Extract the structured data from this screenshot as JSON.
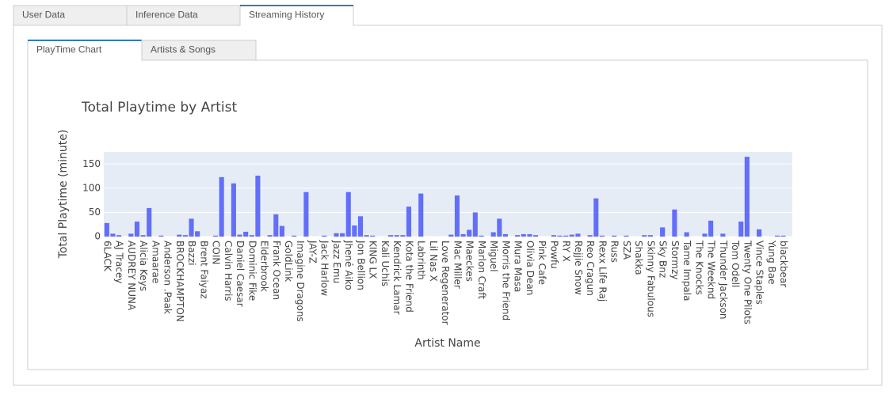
{
  "tabs": [
    {
      "label": "User Data"
    },
    {
      "label": "Inference Data"
    },
    {
      "label": "Streaming History"
    }
  ],
  "active_tab": 2,
  "subtabs": [
    {
      "label": "PlayTime Chart"
    },
    {
      "label": "Artists & Songs"
    }
  ],
  "active_subtab": 0,
  "chart_data": {
    "type": "bar",
    "title": "Total Playtime by Artist",
    "x_label": "Artist Name",
    "y_label": "Total Playtime (minute)",
    "color": "#636efa",
    "grid": true,
    "ylim": [
      0,
      175
    ],
    "yticks": [
      0,
      50,
      100,
      150
    ],
    "categories": [
      "6LACK",
      null,
      "AJ Tracey",
      null,
      "AUDREY NUNA",
      null,
      "Alicia Keys",
      null,
      "Amaarae",
      null,
      "Anderson .Paak",
      null,
      "BROCKHAMPTON",
      null,
      "Bazzi",
      null,
      "Brent Faiyaz",
      null,
      "COIN",
      null,
      "Calvin Harris",
      null,
      "Daniel Caesar",
      null,
      "Dominic Fike",
      null,
      "Elderbrook",
      null,
      "Frank Ocean",
      null,
      "GoldLink",
      null,
      "Imagine Dragons",
      null,
      "JAY-Z",
      null,
      "Jack Harlow",
      null,
      "Jazz Emu",
      null,
      "Jhené Aiko",
      null,
      "Jon Bellion",
      null,
      "KING LX",
      null,
      "Kali Uchis",
      null,
      "Kendrick Lamar",
      null,
      "Kota the Friend",
      null,
      "Labrinth",
      null,
      "Lil Nas X",
      null,
      "Love Regenerator",
      null,
      "Mac Miller",
      null,
      "Maeckes",
      null,
      "Marlon Craft",
      null,
      "Miguel",
      null,
      "Morris the Friend",
      null,
      "Mura Masa",
      null,
      "Olivia Dean",
      null,
      "Pink Cafe",
      null,
      "Powfu",
      null,
      "RY X",
      null,
      "Rejjie Snow",
      null,
      "Reo Cragun",
      null,
      "Rexx Life Raj",
      null,
      "Russ",
      null,
      "SZA",
      null,
      "Shakka",
      null,
      "Skinny Fabulous",
      null,
      "Sky Bnz",
      null,
      "Stormzy",
      null,
      "Tame Impala",
      null,
      "The Knocks",
      null,
      "The Weeknd",
      null,
      "Thunder Jackson",
      null,
      "Tom Odell",
      null,
      "Twenty One Pilots",
      null,
      "Vince Staples",
      null,
      "Yung Bae",
      null,
      "blackbear",
      null
    ],
    "values": [
      28,
      6,
      3,
      0,
      6,
      31,
      3,
      59,
      0,
      2,
      0,
      0,
      4,
      3,
      37,
      11,
      0,
      0,
      2,
      123,
      0,
      110,
      4,
      10,
      3,
      126,
      0,
      3,
      46,
      22,
      0,
      2,
      0,
      92,
      0,
      0,
      2,
      0,
      7,
      7,
      92,
      23,
      42,
      3,
      2,
      0,
      0,
      3,
      3,
      3,
      62,
      0,
      89,
      0,
      0,
      0,
      0,
      4,
      85,
      5,
      14,
      50,
      2,
      0,
      9,
      37,
      5,
      0,
      3,
      5,
      5,
      3,
      0,
      0,
      3,
      2,
      2,
      4,
      6,
      0,
      3,
      79,
      2,
      0,
      2,
      0,
      2,
      0,
      0,
      3,
      3,
      0,
      19,
      0,
      56,
      0,
      9,
      0,
      0,
      6,
      33,
      0,
      6,
      0,
      0,
      31,
      165,
      0,
      15,
      0,
      0,
      2,
      2,
      0
    ]
  }
}
